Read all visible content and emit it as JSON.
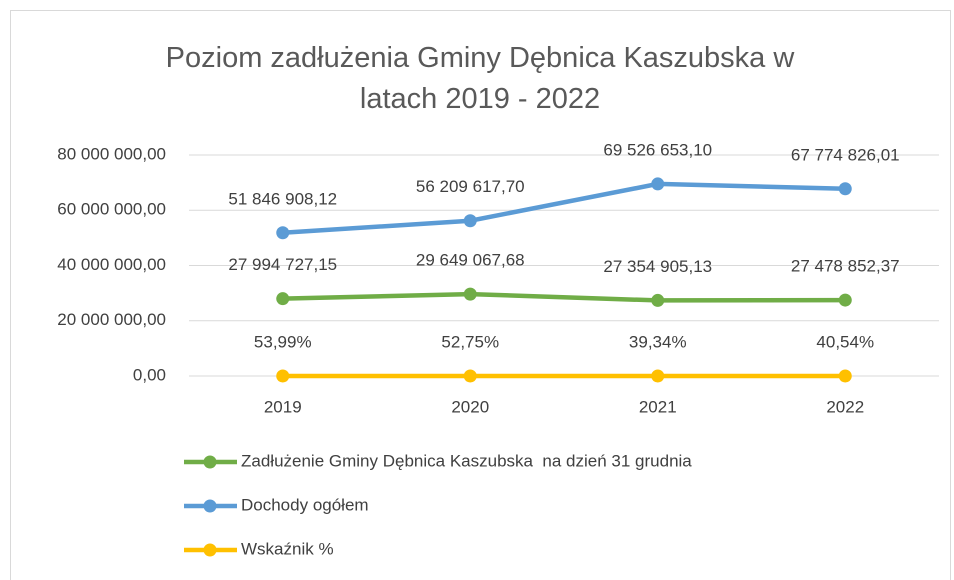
{
  "chart_data": {
    "type": "line",
    "title": "Poziom zadłużenia Gminy Dębnica Kaszubska w latach 2019 - 2022",
    "categories": [
      "2019",
      "2020",
      "2021",
      "2022"
    ],
    "series": [
      {
        "name": "Zadłużenie Gminy Dębnica Kaszubska  na dzień 31 grudnia",
        "color": "#70ad47",
        "values": [
          27994727.15,
          29649067.68,
          27354905.13,
          27478852.37
        ],
        "value_labels": [
          "27 994 727,15",
          "29 649 067,68",
          "27 354 905,13",
          "27 478 852,37"
        ]
      },
      {
        "name": "Dochody ogółem",
        "color": "#5b9bd5",
        "values": [
          51846908.12,
          56209617.7,
          69526653.1,
          67774826.01
        ],
        "value_labels": [
          "51 846 908,12",
          "56 209 617,70",
          "69 526 653,10",
          "67 774 826,01"
        ]
      },
      {
        "name": "Wskaźnik %",
        "color": "#ffc000",
        "values": [
          0.5399,
          0.5275,
          0.3934,
          0.4054
        ],
        "value_labels": [
          "53,99%",
          "52,75%",
          "39,34%",
          "40,54%"
        ]
      }
    ],
    "ylim": [
      0,
      80000000
    ],
    "yticks": [
      {
        "value": 0,
        "label": "0,00"
      },
      {
        "value": 20000000,
        "label": "20 000 000,00"
      },
      {
        "value": 40000000,
        "label": "40 000 000,00"
      },
      {
        "value": 60000000,
        "label": "60 000 000,00"
      },
      {
        "value": 80000000,
        "label": "80 000 000,00"
      }
    ],
    "grid": true,
    "legend": "bottom"
  }
}
